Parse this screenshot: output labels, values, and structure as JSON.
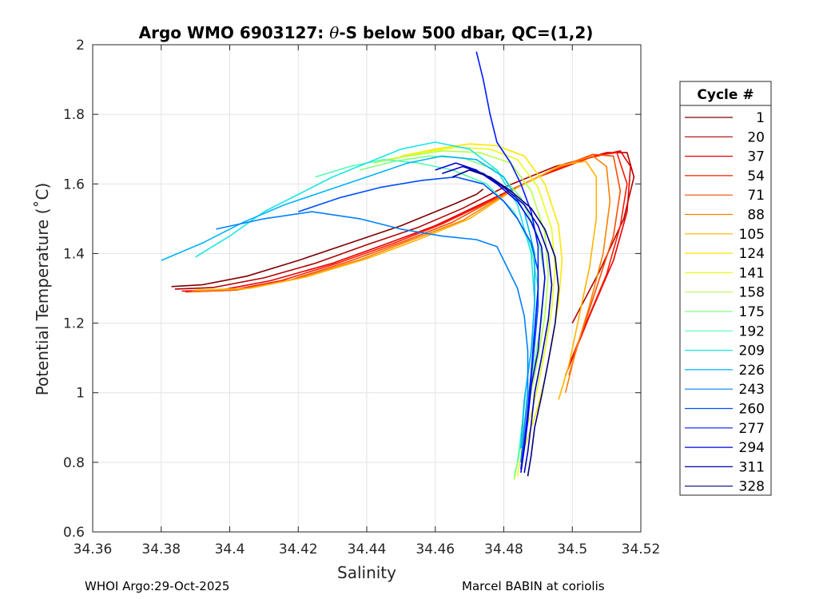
{
  "chart_data": {
    "type": "line",
    "title_prefix": "Argo WMO 6903127: ",
    "title_theta": "θ",
    "title_suffix": "-S below 500 dbar,  QC=(1,2)",
    "xlabel": "Salinity",
    "ylabel": "Potential Temperature (˚C)",
    "xlim": [
      34.36,
      34.52
    ],
    "ylim": [
      0.6,
      2.0
    ],
    "xticks": [
      34.36,
      34.38,
      34.4,
      34.42,
      34.44,
      34.46,
      34.48,
      34.5,
      34.52
    ],
    "xtick_labels": [
      "34.36",
      "34.38",
      "34.4",
      "34.42",
      "34.44",
      "34.46",
      "34.48",
      "34.5",
      "34.52"
    ],
    "yticks": [
      0.6,
      0.8,
      1.0,
      1.2,
      1.4,
      1.6,
      1.8,
      2.0
    ],
    "ytick_labels": [
      "0.6",
      "0.8",
      "1",
      "1.2",
      "1.4",
      "1.6",
      "1.8",
      "2"
    ],
    "grid": true,
    "legend": {
      "title": "Cycle #",
      "placement": "right, outside plot",
      "entries": [
        "1",
        "20",
        "37",
        "54",
        "71",
        "88",
        "105",
        "124",
        "141",
        "158",
        "175",
        "192",
        "209",
        "226",
        "243",
        "260",
        "277",
        "294",
        "311",
        "328"
      ],
      "colors": [
        "#7f0000",
        "#b20000",
        "#e60000",
        "#ff1a00",
        "#ff4d00",
        "#ff8000",
        "#ffb300",
        "#ffe600",
        "#e6ff1a",
        "#b3ff4d",
        "#80ff80",
        "#4dffb3",
        "#1ae6e6",
        "#00b3ff",
        "#0080ff",
        "#004dff",
        "#001aff",
        "#0000e6",
        "#0000b3",
        "#00007f"
      ]
    },
    "series": [
      {
        "name": "1",
        "salinity": [
          34.383,
          34.392,
          34.405,
          34.42,
          34.435,
          34.45,
          34.465,
          34.472,
          34.474
        ],
        "theta": [
          1.305,
          1.31,
          1.335,
          1.38,
          1.43,
          1.48,
          1.54,
          1.57,
          1.585
        ]
      },
      {
        "name": "20",
        "salinity": [
          34.384,
          34.395,
          34.41,
          34.425,
          34.44,
          34.455,
          34.468,
          34.48,
          34.495,
          34.51,
          34.516,
          34.518,
          34.515,
          34.508,
          34.5
        ],
        "theta": [
          1.298,
          1.302,
          1.33,
          1.372,
          1.425,
          1.475,
          1.53,
          1.59,
          1.65,
          1.69,
          1.69,
          1.62,
          1.5,
          1.35,
          1.2
        ]
      },
      {
        "name": "37",
        "salinity": [
          34.386,
          34.398,
          34.412,
          34.43,
          34.445,
          34.46,
          34.475,
          34.49,
          34.505,
          34.514,
          34.517,
          34.516,
          34.512,
          34.505,
          34.498
        ],
        "theta": [
          1.292,
          1.296,
          1.322,
          1.372,
          1.425,
          1.48,
          1.55,
          1.62,
          1.675,
          1.695,
          1.65,
          1.52,
          1.38,
          1.22,
          1.05
        ]
      },
      {
        "name": "54",
        "salinity": [
          34.387,
          34.4,
          34.415,
          34.432,
          34.448,
          34.462,
          34.478,
          34.492,
          34.507,
          34.513,
          34.516,
          34.514,
          34.51,
          34.504,
          34.499
        ],
        "theta": [
          1.29,
          1.294,
          1.322,
          1.374,
          1.43,
          1.485,
          1.56,
          1.63,
          1.682,
          1.69,
          1.6,
          1.48,
          1.34,
          1.2,
          1.08
        ]
      },
      {
        "name": "71",
        "salinity": [
          34.388,
          34.402,
          34.418,
          34.435,
          34.45,
          34.465,
          34.48,
          34.494,
          34.506,
          34.512,
          34.514,
          34.512,
          34.507,
          34.502,
          34.499
        ],
        "theta": [
          1.29,
          1.295,
          1.325,
          1.378,
          1.432,
          1.49,
          1.57,
          1.64,
          1.685,
          1.68,
          1.58,
          1.45,
          1.3,
          1.15,
          1.05
        ]
      },
      {
        "name": "88",
        "salinity": [
          34.389,
          34.404,
          34.42,
          34.438,
          34.452,
          34.468,
          34.482,
          34.496,
          34.506,
          34.51,
          34.511,
          34.509,
          34.505,
          34.501,
          34.498
        ],
        "theta": [
          1.292,
          1.298,
          1.328,
          1.382,
          1.435,
          1.495,
          1.58,
          1.65,
          1.68,
          1.65,
          1.55,
          1.4,
          1.25,
          1.12,
          1.0
        ]
      },
      {
        "name": "105",
        "salinity": [
          34.39,
          34.406,
          34.422,
          34.44,
          34.455,
          34.47,
          34.484,
          34.497,
          34.504,
          34.507,
          34.507,
          34.505,
          34.502,
          34.499,
          34.496
        ],
        "theta": [
          1.295,
          1.3,
          1.332,
          1.385,
          1.44,
          1.5,
          1.59,
          1.655,
          1.665,
          1.62,
          1.5,
          1.36,
          1.22,
          1.08,
          0.98
        ]
      },
      {
        "name": "124",
        "salinity": [
          34.45,
          34.46,
          34.47,
          34.478,
          34.486,
          34.492,
          34.496,
          34.497,
          34.496,
          34.494,
          34.492,
          34.49,
          34.488,
          34.486,
          34.485
        ],
        "theta": [
          1.68,
          1.7,
          1.715,
          1.71,
          1.68,
          1.6,
          1.48,
          1.38,
          1.26,
          1.14,
          1.04,
          0.96,
          0.9,
          0.84,
          0.79
        ]
      },
      {
        "name": "141",
        "salinity": [
          34.446,
          34.456,
          34.466,
          34.476,
          34.484,
          34.49,
          34.494,
          34.495,
          34.494,
          34.492,
          34.49,
          34.488,
          34.486,
          34.485,
          34.484
        ],
        "theta": [
          1.67,
          1.69,
          1.705,
          1.7,
          1.67,
          1.59,
          1.47,
          1.36,
          1.24,
          1.12,
          1.02,
          0.94,
          0.88,
          0.82,
          0.76
        ]
      },
      {
        "name": "158",
        "salinity": [
          34.442,
          34.452,
          34.462,
          34.473,
          34.482,
          34.488,
          34.492,
          34.493,
          34.492,
          34.49,
          34.488,
          34.486,
          34.485,
          34.484,
          34.483
        ],
        "theta": [
          1.66,
          1.68,
          1.695,
          1.69,
          1.66,
          1.58,
          1.46,
          1.34,
          1.22,
          1.1,
          1.0,
          0.92,
          0.86,
          0.8,
          0.75
        ]
      },
      {
        "name": "175",
        "salinity": [
          34.438,
          34.448,
          34.458,
          34.468,
          34.478,
          34.485,
          34.49,
          34.492,
          34.491,
          34.489,
          34.487,
          34.486,
          34.485,
          34.484,
          34.483
        ],
        "theta": [
          1.64,
          1.665,
          1.68,
          1.675,
          1.64,
          1.56,
          1.45,
          1.33,
          1.21,
          1.09,
          0.99,
          0.91,
          0.85,
          0.8,
          0.76
        ]
      },
      {
        "name": "192",
        "salinity": [
          34.425,
          34.435,
          34.445,
          34.455,
          34.465,
          34.475,
          34.483,
          34.488,
          34.49,
          34.489,
          34.487,
          34.486,
          34.485,
          34.484
        ],
        "theta": [
          1.62,
          1.65,
          1.67,
          1.66,
          1.64,
          1.6,
          1.52,
          1.42,
          1.3,
          1.18,
          1.06,
          0.96,
          0.88,
          0.8
        ]
      },
      {
        "name": "209",
        "salinity": [
          34.39,
          34.4,
          34.41,
          34.42,
          34.43,
          34.44,
          34.45,
          34.46,
          34.47,
          34.478,
          34.484,
          34.488,
          34.489,
          34.488,
          34.486,
          34.485
        ],
        "theta": [
          1.39,
          1.45,
          1.52,
          1.57,
          1.62,
          1.66,
          1.7,
          1.72,
          1.7,
          1.64,
          1.54,
          1.4,
          1.26,
          1.12,
          0.98,
          0.86
        ]
      },
      {
        "name": "226",
        "salinity": [
          34.38,
          34.392,
          34.404,
          34.416,
          34.428,
          34.44,
          34.452,
          34.462,
          34.472,
          34.48,
          34.486,
          34.489,
          34.489,
          34.488,
          34.486,
          34.485
        ],
        "theta": [
          1.38,
          1.43,
          1.49,
          1.54,
          1.58,
          1.62,
          1.66,
          1.68,
          1.67,
          1.62,
          1.52,
          1.4,
          1.26,
          1.12,
          0.98,
          0.84
        ]
      },
      {
        "name": "243",
        "salinity": [
          34.396,
          34.41,
          34.424,
          34.438,
          34.45,
          34.462,
          34.472,
          34.478,
          34.48,
          34.482,
          34.484,
          34.486,
          34.487,
          34.487,
          34.486,
          34.485
        ],
        "theta": [
          1.47,
          1.5,
          1.52,
          1.5,
          1.47,
          1.45,
          1.44,
          1.42,
          1.38,
          1.34,
          1.3,
          1.22,
          1.12,
          1.0,
          0.9,
          0.8
        ]
      },
      {
        "name": "260",
        "salinity": [
          34.42,
          34.432,
          34.444,
          34.456,
          34.466,
          34.474,
          34.48,
          34.484,
          34.488,
          34.49,
          34.49,
          34.489,
          34.488,
          34.487,
          34.486,
          34.485
        ],
        "theta": [
          1.52,
          1.56,
          1.59,
          1.61,
          1.62,
          1.6,
          1.55,
          1.5,
          1.43,
          1.35,
          1.25,
          1.14,
          1.04,
          0.94,
          0.85,
          0.78
        ]
      },
      {
        "name": "277",
        "salinity": [
          34.472,
          34.474,
          34.476,
          34.478,
          34.482,
          34.485,
          34.488,
          34.49,
          34.49,
          34.489,
          34.488,
          34.487,
          34.486,
          34.485
        ],
        "theta": [
          1.98,
          1.9,
          1.8,
          1.72,
          1.66,
          1.6,
          1.52,
          1.42,
          1.3,
          1.18,
          1.06,
          0.95,
          0.86,
          0.78
        ]
      },
      {
        "name": "294",
        "salinity": [
          34.46,
          34.466,
          34.472,
          34.478,
          34.484,
          34.488,
          34.491,
          34.492,
          34.491,
          34.49,
          34.488,
          34.487,
          34.486,
          34.485
        ],
        "theta": [
          1.64,
          1.66,
          1.64,
          1.6,
          1.55,
          1.49,
          1.42,
          1.33,
          1.23,
          1.12,
          1.02,
          0.92,
          0.84,
          0.77
        ]
      },
      {
        "name": "311",
        "salinity": [
          34.462,
          34.468,
          34.474,
          34.48,
          34.486,
          34.49,
          34.493,
          34.494,
          34.493,
          34.491,
          34.489,
          34.488,
          34.487,
          34.486
        ],
        "theta": [
          1.63,
          1.65,
          1.63,
          1.59,
          1.54,
          1.48,
          1.4,
          1.31,
          1.21,
          1.1,
          1.0,
          0.91,
          0.83,
          0.77
        ]
      },
      {
        "name": "328",
        "salinity": [
          34.465,
          34.47,
          34.476,
          34.482,
          34.488,
          34.492,
          34.495,
          34.496,
          34.495,
          34.493,
          34.491,
          34.489,
          34.488,
          34.487
        ],
        "theta": [
          1.62,
          1.64,
          1.62,
          1.58,
          1.53,
          1.47,
          1.39,
          1.3,
          1.2,
          1.09,
          0.99,
          0.9,
          0.82,
          0.76
        ]
      }
    ]
  },
  "footer": {
    "left": "WHOI Argo:29-Oct-2025",
    "right": "Marcel BABIN at coriolis"
  }
}
